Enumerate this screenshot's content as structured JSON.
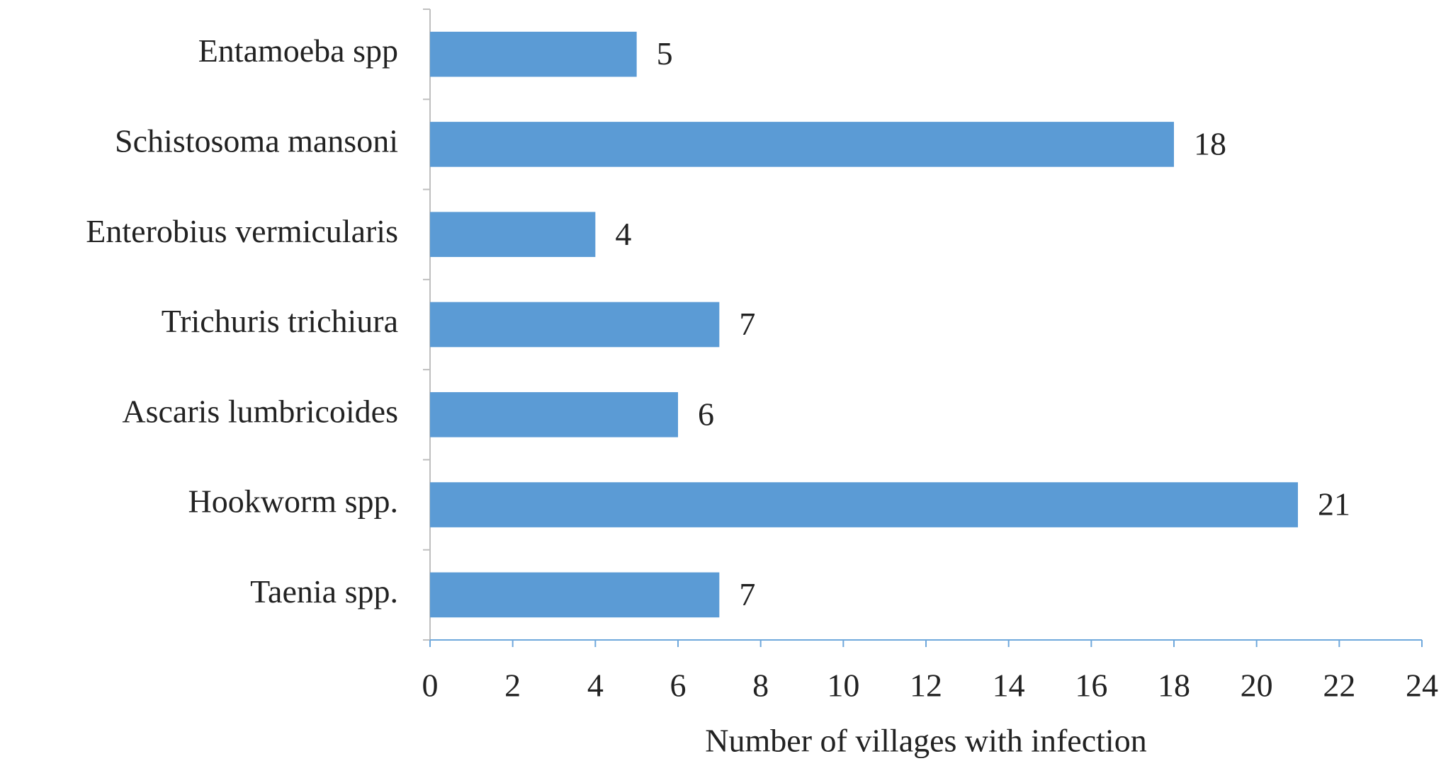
{
  "chart_data": {
    "type": "bar",
    "orientation": "horizontal",
    "xlabel": "Number of villages  with infection",
    "categories": [
      "Entamoeba spp",
      "Schistosoma mansoni",
      "Enterobius vermicularis",
      "Trichuris trichiura",
      "Ascaris lumbricoides",
      "Hookworm spp.",
      "Taenia spp."
    ],
    "values": [
      5,
      18,
      4,
      7,
      6,
      21,
      7
    ],
    "color": "#5b9bd5",
    "xlim": [
      0,
      24
    ],
    "xticks": [
      0,
      2,
      4,
      6,
      8,
      10,
      12,
      14,
      16,
      18,
      20,
      22,
      24
    ],
    "grid": false
  }
}
